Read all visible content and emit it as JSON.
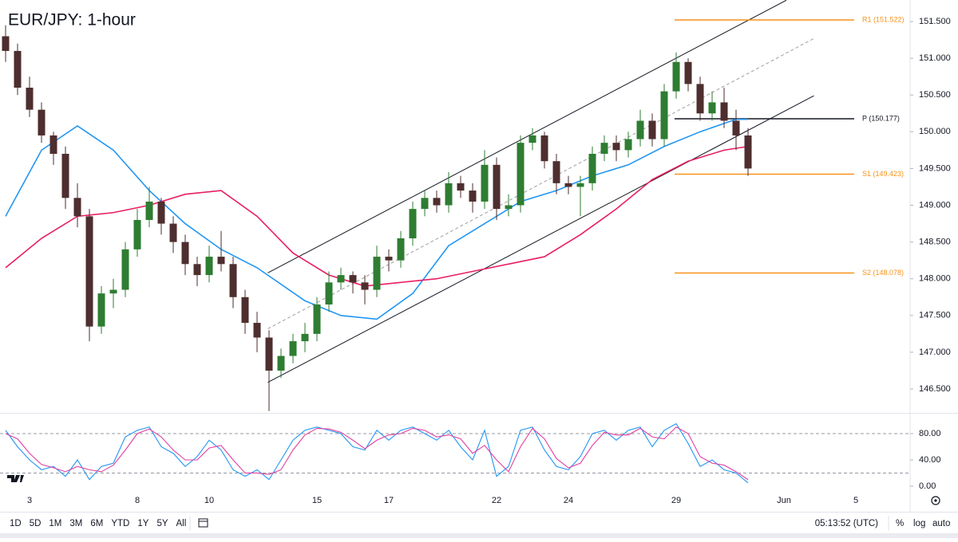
{
  "chart_data": [
    {
      "type": "candlestick",
      "title": "EUR/JPY: 1-hour",
      "open": [
        151.3,
        151.1,
        150.6,
        150.3,
        149.95,
        149.7,
        149.1,
        148.85,
        147.35,
        147.8,
        147.85,
        148.4,
        148.8,
        149.05,
        148.75,
        148.5,
        148.2,
        148.05,
        148.3,
        148.2,
        147.75,
        147.4,
        147.2,
        146.75,
        146.95,
        147.15,
        147.25,
        147.65,
        147.95,
        148.05,
        147.95,
        147.85,
        148.3,
        148.25,
        148.55,
        148.95,
        149.1,
        149.0,
        149.3,
        149.2,
        149.05,
        149.55,
        148.95,
        149.0,
        149.85,
        149.95,
        149.6,
        149.3,
        149.25,
        149.3,
        149.7,
        149.85,
        149.75,
        149.9,
        150.15,
        149.9,
        150.55,
        150.95,
        150.65,
        150.25,
        150.4,
        150.15,
        149.95
      ],
      "high": [
        151.45,
        151.2,
        150.75,
        150.4,
        150.0,
        149.8,
        149.3,
        148.95,
        147.9,
        148.0,
        148.5,
        148.95,
        149.25,
        149.1,
        148.85,
        148.6,
        148.3,
        148.45,
        148.65,
        148.3,
        147.85,
        147.55,
        147.3,
        147.05,
        147.25,
        147.4,
        147.75,
        148.1,
        148.15,
        148.1,
        148.05,
        148.45,
        148.4,
        148.65,
        149.05,
        149.2,
        149.2,
        149.45,
        149.4,
        149.3,
        149.75,
        149.65,
        149.15,
        149.95,
        150.05,
        150.0,
        149.7,
        149.4,
        149.4,
        149.8,
        149.95,
        149.95,
        150.0,
        150.3,
        150.25,
        150.65,
        151.08,
        151.0,
        150.75,
        150.55,
        150.6,
        150.3,
        150.05
      ],
      "low": [
        150.95,
        150.5,
        150.2,
        149.85,
        149.55,
        148.95,
        148.7,
        147.15,
        147.25,
        147.6,
        147.75,
        148.3,
        148.7,
        148.6,
        148.35,
        148.05,
        147.9,
        147.95,
        148.1,
        147.6,
        147.25,
        147.0,
        146.2,
        146.65,
        146.85,
        147.0,
        147.15,
        147.55,
        147.85,
        147.8,
        147.65,
        147.75,
        148.1,
        148.15,
        148.45,
        148.85,
        148.9,
        148.9,
        149.1,
        148.9,
        148.95,
        148.8,
        148.85,
        148.9,
        149.75,
        149.5,
        149.15,
        149.15,
        148.85,
        149.2,
        149.6,
        149.6,
        149.65,
        149.8,
        149.8,
        149.8,
        150.45,
        150.55,
        150.15,
        150.15,
        150.05,
        149.75,
        149.4
      ],
      "close": [
        151.1,
        150.6,
        150.3,
        149.95,
        149.7,
        149.1,
        148.85,
        147.35,
        147.8,
        147.85,
        148.4,
        148.8,
        149.05,
        148.75,
        148.5,
        148.2,
        148.05,
        148.3,
        148.2,
        147.75,
        147.4,
        147.2,
        146.75,
        146.95,
        147.15,
        147.25,
        147.65,
        147.95,
        148.05,
        147.95,
        147.85,
        148.3,
        148.25,
        148.55,
        148.95,
        149.1,
        149.0,
        149.3,
        149.2,
        149.05,
        149.55,
        148.95,
        149.0,
        149.85,
        149.95,
        149.6,
        149.3,
        149.25,
        149.3,
        149.7,
        149.85,
        149.75,
        149.9,
        150.15,
        149.9,
        150.55,
        150.95,
        150.65,
        150.25,
        150.4,
        150.15,
        149.95,
        149.5
      ],
      "up_color": "#2e7d32",
      "down_color": "#4e2e2e",
      "xlim": [
        -0.467,
        75.533
      ],
      "ylim": [
        146.175,
        151.793
      ],
      "xticks": [
        {
          "value": 2,
          "label": "3"
        },
        {
          "value": 11,
          "label": "8"
        },
        {
          "value": 17,
          "label": "10"
        },
        {
          "value": 26,
          "label": "15"
        },
        {
          "value": 32,
          "label": "17"
        },
        {
          "value": 41,
          "label": "22"
        },
        {
          "value": 47,
          "label": "24"
        },
        {
          "value": 56,
          "label": "29"
        },
        {
          "value": 65,
          "label": "Jun"
        },
        {
          "value": 71,
          "label": "5"
        }
      ],
      "yticks": [
        {
          "value": 146.5,
          "label": "146.500"
        },
        {
          "value": 147,
          "label": "147.000"
        },
        {
          "value": 147.5,
          "label": "147.500"
        },
        {
          "value": 148,
          "label": "148.000"
        },
        {
          "value": 148.5,
          "label": "148.500"
        },
        {
          "value": 149,
          "label": "149.000"
        },
        {
          "value": 149.5,
          "label": "149.500"
        },
        {
          "value": 150,
          "label": "150.000"
        },
        {
          "value": 150.5,
          "label": "150.500"
        },
        {
          "value": 151,
          "label": "151.000"
        },
        {
          "value": 151.5,
          "label": "151.500"
        }
      ],
      "moving_averages": [
        {
          "color": "#2196f3",
          "x": [
            0,
            3,
            6,
            9,
            12,
            15,
            18,
            21,
            25,
            28,
            31,
            34,
            37,
            40,
            43,
            46,
            49,
            52,
            55,
            58,
            61,
            62
          ],
          "values": [
            148.85,
            149.75,
            150.08,
            149.75,
            149.2,
            148.75,
            148.4,
            148.15,
            147.7,
            147.5,
            147.45,
            147.8,
            148.45,
            148.75,
            149.05,
            149.2,
            149.4,
            149.55,
            149.8,
            150.0,
            150.17,
            150.17
          ]
        },
        {
          "color": "#e91e63",
          "x": [
            0,
            3,
            6,
            9,
            12,
            15,
            18,
            21,
            24,
            27,
            30,
            33,
            36,
            39,
            42,
            45,
            48,
            51,
            54,
            57,
            60,
            62
          ],
          "values": [
            148.15,
            148.55,
            148.85,
            148.9,
            149.0,
            149.15,
            149.2,
            148.85,
            148.35,
            148.05,
            147.9,
            147.95,
            148.0,
            148.1,
            148.2,
            148.3,
            148.6,
            148.95,
            149.35,
            149.6,
            149.75,
            149.8
          ]
        }
      ],
      "channel": [
        {
          "x": [
            21.9,
            65.2
          ],
          "values": [
            148.08,
            151.79
          ],
          "color": "#131722",
          "dashed": false
        },
        {
          "x": [
            21.9,
            67.5
          ],
          "values": [
            147.32,
            151.27
          ],
          "color": "#9e9e9e",
          "dashed": true
        },
        {
          "x": [
            21.9,
            67.5
          ],
          "values": [
            146.59,
            150.49
          ],
          "color": "#131722",
          "dashed": false
        }
      ],
      "levels": [
        {
          "label": "R1 (151.522)",
          "value": 151.522,
          "color": "#f7931a"
        },
        {
          "label": "P (150.177)",
          "value": 150.177,
          "color": "#131722"
        },
        {
          "label": "S1 (149.423)",
          "value": 149.423,
          "color": "#f7931a"
        },
        {
          "label": "S2 (148.078)",
          "value": 148.078,
          "color": "#f7931a"
        }
      ]
    },
    {
      "type": "line",
      "series": [
        {
          "color": "#2196f3",
          "values": [
            85,
            60,
            40,
            25,
            30,
            15,
            40,
            10,
            30,
            35,
            75,
            85,
            90,
            60,
            50,
            30,
            45,
            70,
            55,
            25,
            15,
            25,
            10,
            40,
            70,
            85,
            90,
            85,
            80,
            60,
            55,
            85,
            70,
            85,
            90,
            80,
            70,
            85,
            60,
            40,
            85,
            15,
            30,
            85,
            90,
            55,
            30,
            25,
            45,
            80,
            85,
            70,
            85,
            90,
            60,
            85,
            95,
            65,
            30,
            40,
            25,
            20,
            5
          ]
        },
        {
          "color": "#e040a0",
          "values": [
            80,
            72,
            50,
            33,
            28,
            22,
            30,
            25,
            22,
            32,
            55,
            80,
            87,
            75,
            55,
            40,
            40,
            58,
            62,
            40,
            20,
            20,
            18,
            25,
            55,
            78,
            88,
            87,
            82,
            70,
            57,
            70,
            78,
            80,
            88,
            85,
            75,
            78,
            72,
            50,
            62,
            40,
            22,
            60,
            88,
            72,
            42,
            28,
            35,
            62,
            82,
            78,
            78,
            88,
            75,
            72,
            90,
            80,
            45,
            35,
            32,
            22,
            10
          ]
        }
      ],
      "bands": [
        20,
        80
      ],
      "ylim": [
        -36.4,
        109.1
      ],
      "yticks": [
        {
          "value": 0,
          "label": "0.00"
        },
        {
          "value": 40,
          "label": "40.00"
        },
        {
          "value": 80,
          "label": "80.00"
        }
      ]
    }
  ],
  "toolbar": {
    "ranges": [
      "1D",
      "5D",
      "1M",
      "3M",
      "6M",
      "YTD",
      "1Y",
      "5Y",
      "All"
    ],
    "time": "05:13:52 (UTC)",
    "options": [
      "%",
      "log",
      "auto"
    ]
  }
}
